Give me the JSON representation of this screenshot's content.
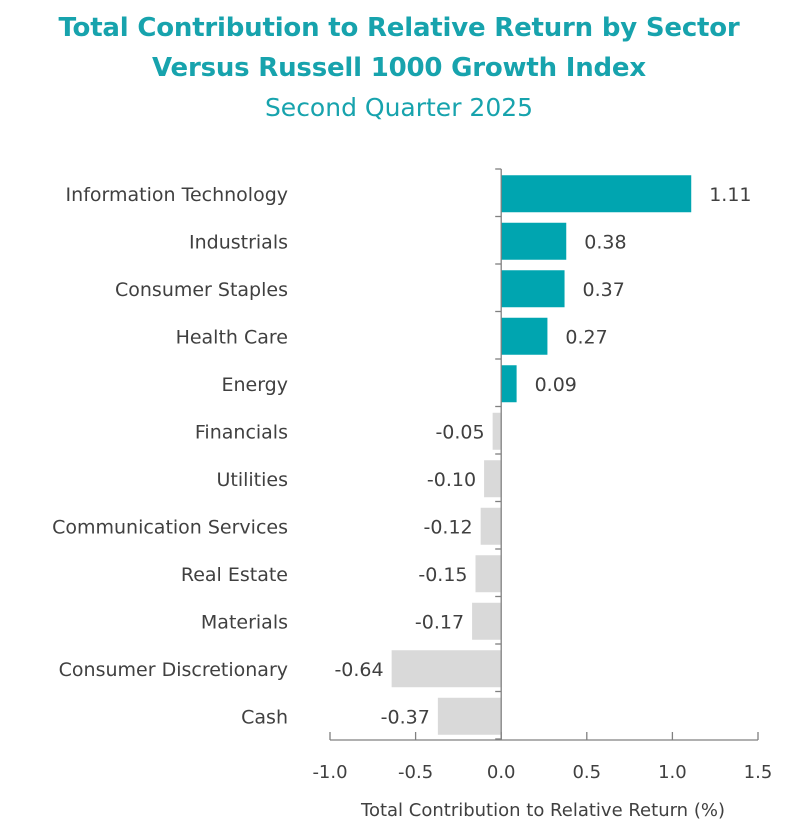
{
  "chart_data": {
    "type": "bar",
    "orientation": "horizontal",
    "title_lines": [
      "Total Contribution to Relative Return by Sector",
      "Versus Russell 1000 Growth Index"
    ],
    "subtitle": "Second Quarter 2025",
    "categories": [
      "Information Technology",
      "Industrials",
      "Consumer Staples",
      "Health Care",
      "Energy",
      "Financials",
      "Utilities",
      "Communication Services",
      "Real Estate",
      "Materials",
      "Consumer Discretionary",
      "Cash"
    ],
    "values": [
      1.11,
      0.38,
      0.37,
      0.27,
      0.09,
      -0.05,
      -0.1,
      -0.12,
      -0.15,
      -0.17,
      -0.64,
      -0.37
    ],
    "value_labels": [
      "1.11",
      "0.38",
      "0.37",
      "0.27",
      "0.09",
      "-0.05",
      "-0.10",
      "-0.12",
      "-0.15",
      "-0.17",
      "-0.64",
      "-0.37"
    ],
    "xlim": [
      -1.0,
      1.5
    ],
    "xticks": [
      -1.0,
      -0.5,
      0.0,
      0.5,
      1.0,
      1.5
    ],
    "xtick_labels": [
      "-1.0",
      "-0.5",
      "0.0",
      "0.5",
      "1.0",
      "1.5"
    ],
    "xlabel": "Total Contribution to Relative Return (%)",
    "ylabel": "",
    "grid": false,
    "legend": "none",
    "colors": {
      "positive": "#00a5b0",
      "negative": "#d9d9d9",
      "title": "#17a3ad",
      "text": "#404040",
      "axis": "#808080"
    }
  }
}
